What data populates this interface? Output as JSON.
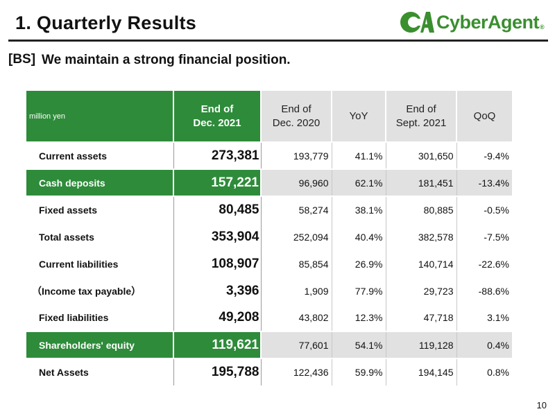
{
  "header": {
    "title": "1.  Quarterly Results",
    "logo_text": "CyberAgent",
    "logo_mark_text": "CA",
    "logo_reg": "®",
    "brand_color": "#3a8f2f"
  },
  "subheader": {
    "tag": "[BS]",
    "text": "We maintain a strong financial position."
  },
  "table": {
    "unit": "million yen",
    "columns": [
      {
        "line1": "End of",
        "line2": "Dec. 2021"
      },
      {
        "line1": "End of",
        "line2": "Dec. 2020"
      },
      {
        "line1": "YoY",
        "line2": ""
      },
      {
        "line1": "End of",
        "line2": "Sept. 2021"
      },
      {
        "line1": "QoQ",
        "line2": ""
      }
    ],
    "rows": [
      {
        "label": "Current assets",
        "dec2021": "273,381",
        "dec2020": "193,779",
        "yoy": "41.1%",
        "sept2021": "301,650",
        "qoq": "-9.4%"
      },
      {
        "label": "Cash deposits",
        "dec2021": "157,221",
        "dec2020": "96,960",
        "yoy": "62.1%",
        "sept2021": "181,451",
        "qoq": "-13.4%"
      },
      {
        "label": "Fixed assets",
        "dec2021": "80,485",
        "dec2020": "58,274",
        "yoy": "38.1%",
        "sept2021": "80,885",
        "qoq": "-0.5%"
      },
      {
        "label": "Total assets",
        "dec2021": "353,904",
        "dec2020": "252,094",
        "yoy": "40.4%",
        "sept2021": "382,578",
        "qoq": "-7.5%"
      },
      {
        "label": "Current liabilities",
        "dec2021": "108,907",
        "dec2020": "85,854",
        "yoy": "26.9%",
        "sept2021": "140,714",
        "qoq": "-22.6%"
      },
      {
        "label": "（Income tax payable）",
        "dec2021": "3,396",
        "dec2020": "1,909",
        "yoy": "77.9%",
        "sept2021": "29,723",
        "qoq": "-88.6%"
      },
      {
        "label": "Fixed liabilities",
        "dec2021": "49,208",
        "dec2020": "43,802",
        "yoy": "12.3%",
        "sept2021": "47,718",
        "qoq": "3.1%"
      },
      {
        "label": "Shareholders' equity",
        "dec2021": "119,621",
        "dec2020": "77,601",
        "yoy": "54.1%",
        "sept2021": "119,128",
        "qoq": "0.4%"
      },
      {
        "label": "Net Assets",
        "dec2021": "195,788",
        "dec2020": "122,436",
        "yoy": "59.9%",
        "sept2021": "194,145",
        "qoq": "0.8%"
      }
    ],
    "accent_color": "#2e8b3a",
    "header_grey": "#e1e1e1"
  },
  "footer": {
    "page_number": "10"
  }
}
